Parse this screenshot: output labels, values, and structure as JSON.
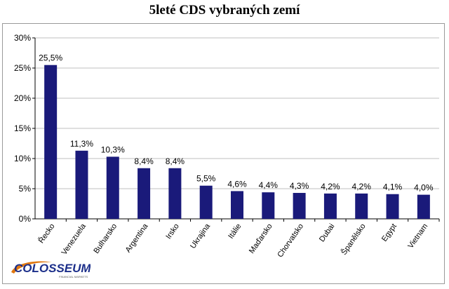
{
  "chart_data": {
    "type": "bar",
    "title": "5leté CDS vybraných zemí",
    "categories": [
      "Řecko",
      "Venezuela",
      "Bulharsko",
      "Argentina",
      "Irsko",
      "Ukrajina",
      "Itálie",
      "Maďarsko",
      "Chorvatsko",
      "Dubai",
      "Španělsko",
      "Egypt",
      "Vietnam"
    ],
    "values": [
      25.5,
      11.3,
      10.3,
      8.4,
      8.4,
      5.5,
      4.6,
      4.4,
      4.3,
      4.2,
      4.2,
      4.1,
      4.0
    ],
    "value_labels": [
      "25,5%",
      "11,3%",
      "10,3%",
      "8,4%",
      "8,4%",
      "5,5%",
      "4,6%",
      "4,4%",
      "4,3%",
      "4,2%",
      "4,2%",
      "4,1%",
      "4,0%"
    ],
    "yticks": [
      0,
      5,
      10,
      15,
      20,
      25,
      30
    ],
    "ytick_labels": [
      "0%",
      "5%",
      "10%",
      "15%",
      "20%",
      "25%",
      "30%"
    ],
    "ylim": [
      0,
      30
    ],
    "xlabel": "",
    "ylabel": "",
    "grid": true,
    "bar_color": "#1a1a7a",
    "grid_color": "#bfbfbf"
  },
  "logo": {
    "text": "COLOSSEUM",
    "subtext": "FINANCIAL MARKETS",
    "color": "#1c2f8a",
    "accent_color": "#e07810"
  }
}
